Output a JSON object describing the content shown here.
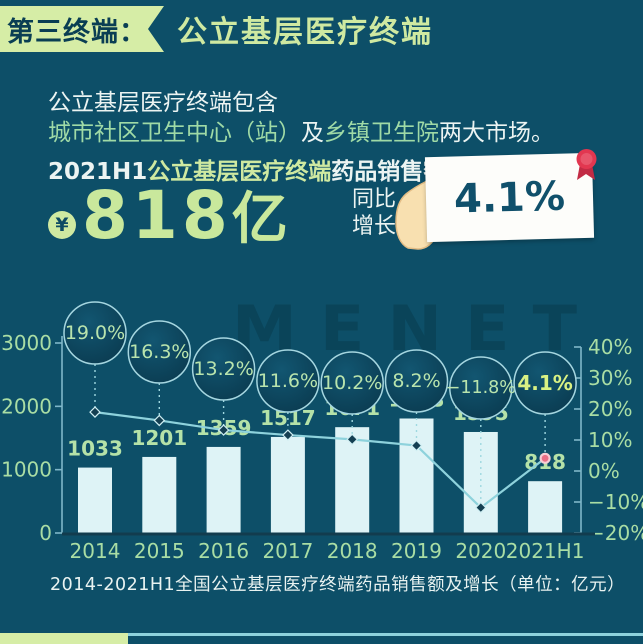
{
  "header": {
    "tag": "第三终端：",
    "title": "公立基层医疗终端"
  },
  "intro": {
    "line1": "公立基层医疗终端包含",
    "line2_parts": [
      {
        "text": "城市社区卫生中心（站）",
        "highlight": true
      },
      {
        "text": "及",
        "highlight": false
      },
      {
        "text": "乡镇卫生院",
        "highlight": true
      },
      {
        "text": "两大市场。",
        "highlight": false
      }
    ]
  },
  "sales": {
    "prefix": "2021H1",
    "highlight": "公立基层医疗终端",
    "suffix": "药品销售额达",
    "currency_symbol": "¥",
    "amount": "818",
    "unit": "亿",
    "growth_label_line1": "同比",
    "growth_label_line2": "增长",
    "growth_value": "4.1%"
  },
  "watermark": "MENET",
  "caption": "2014-2021H1全国公立基层医疗终端药品销售额及增长（单位：亿元）",
  "chart_data": {
    "type": "bar",
    "title": "2014-2021H1全国公立基层医疗终端药品销售额及增长（单位：亿元）",
    "categories": [
      "2014",
      "2015",
      "2016",
      "2017",
      "2018",
      "2019",
      "2020",
      "2021H1"
    ],
    "series": [
      {
        "name": "药品销售额（亿元）",
        "type": "bar",
        "values": [
          1033,
          1201,
          1359,
          1517,
          1671,
          1808,
          1595,
          818
        ]
      },
      {
        "name": "同比增长（%）",
        "type": "line",
        "values": [
          19.0,
          16.3,
          13.2,
          11.6,
          10.2,
          8.2,
          -11.8,
          4.1
        ]
      }
    ],
    "growth_labels": [
      "19.0%",
      "16.3%",
      "13.2%",
      "11.6%",
      "10.2%",
      "8.2%",
      "−11.8%",
      "4.1%"
    ],
    "left_axis": {
      "ticks": [
        3000,
        2000,
        1000,
        0
      ],
      "range": [
        0,
        3000
      ]
    },
    "right_axis": {
      "tick_labels": [
        "40%",
        "30%",
        "20%",
        "10%",
        "0%",
        "−10%",
        "−20%"
      ],
      "tick_values": [
        40,
        30,
        20,
        10,
        0,
        -10,
        -20
      ],
      "range": [
        -20,
        40
      ]
    },
    "grid": false,
    "legend": "none",
    "colors": {
      "background": "#0d4f68",
      "bar": "#def3f6",
      "line": "#8ed2dc",
      "axis": "#7fb7c9",
      "baseline": "#123c4e",
      "label_green": "#a9dda4",
      "value_green": "#b5e2a8",
      "circle_fill_inner": "#125671",
      "circle_fill_outer": "#0a3a4f",
      "circle_stroke": "#a5d6e0",
      "circle_text": "#b9e4ad",
      "circle_text_last": "#d9f183",
      "marker_fill": "#143f52",
      "marker_stroke": "#cfeef2",
      "marker_last_fill": "#e96e86",
      "marker_last_stroke": "#f6cdd5",
      "connector": "#9fd8e0"
    }
  }
}
